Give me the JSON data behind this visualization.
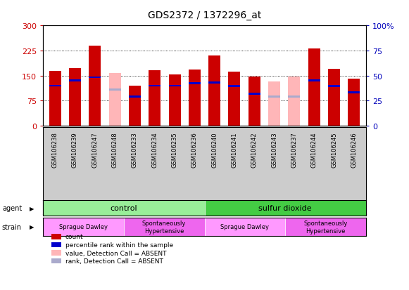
{
  "title": "GDS2372 / 1372296_at",
  "samples": [
    "GSM106238",
    "GSM106239",
    "GSM106247",
    "GSM106248",
    "GSM106233",
    "GSM106234",
    "GSM106235",
    "GSM106236",
    "GSM106240",
    "GSM106241",
    "GSM106242",
    "GSM106243",
    "GSM106237",
    "GSM106244",
    "GSM106245",
    "GSM106246"
  ],
  "count_values": [
    163,
    172,
    240,
    0,
    120,
    167,
    153,
    168,
    210,
    162,
    147,
    0,
    0,
    232,
    170,
    140
  ],
  "count_absent": [
    0,
    0,
    0,
    158,
    0,
    0,
    0,
    0,
    0,
    0,
    0,
    133,
    148,
    0,
    0,
    0
  ],
  "rank_values": [
    120,
    135,
    145,
    0,
    88,
    120,
    120,
    128,
    130,
    118,
    95,
    0,
    0,
    135,
    118,
    100
  ],
  "rank_absent": [
    0,
    0,
    0,
    108,
    0,
    0,
    0,
    0,
    0,
    0,
    0,
    88,
    88,
    0,
    0,
    0
  ],
  "bar_color_red": "#CC0000",
  "bar_color_pink": "#FFB6B8",
  "bar_color_blue": "#0000CC",
  "bar_color_lightblue": "#AAAACC",
  "ylim": [
    0,
    300
  ],
  "y2lim": [
    0,
    100
  ],
  "yticks": [
    0,
    75,
    150,
    225,
    300
  ],
  "y2ticks": [
    0,
    25,
    50,
    75,
    100
  ],
  "agent_groups": [
    {
      "label": "control",
      "start": 0,
      "end": 8,
      "color": "#99EE99"
    },
    {
      "label": "sulfur dioxide",
      "start": 8,
      "end": 16,
      "color": "#44CC44"
    }
  ],
  "strain_groups": [
    {
      "label": "Sprague Dawley",
      "start": 0,
      "end": 4,
      "color": "#FF99FF"
    },
    {
      "label": "Spontaneously\nHypertensive",
      "start": 4,
      "end": 8,
      "color": "#EE66EE"
    },
    {
      "label": "Sprague Dawley",
      "start": 8,
      "end": 12,
      "color": "#FF99FF"
    },
    {
      "label": "Spontaneously\nHypertensive",
      "start": 12,
      "end": 16,
      "color": "#EE66EE"
    }
  ],
  "legend_items": [
    {
      "label": "count",
      "color": "#CC0000"
    },
    {
      "label": "percentile rank within the sample",
      "color": "#0000CC"
    },
    {
      "label": "value, Detection Call = ABSENT",
      "color": "#FFB6B8"
    },
    {
      "label": "rank, Detection Call = ABSENT",
      "color": "#AAAACC"
    }
  ],
  "bar_width": 0.6,
  "background_color": "#FFFFFF",
  "plot_bg_color": "#FFFFFF",
  "axis_color_left": "#CC0000",
  "axis_color_right": "#0000BB"
}
